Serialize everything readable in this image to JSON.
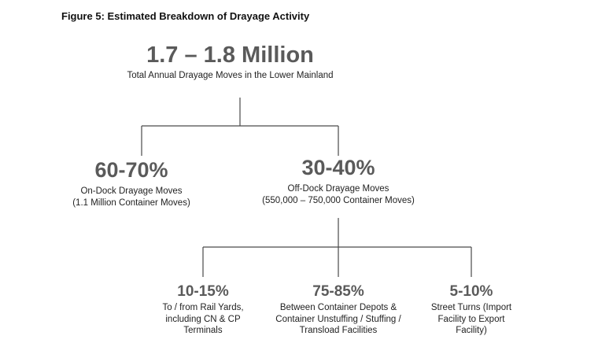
{
  "figure_title": "Figure 5: Estimated Breakdown of Drayage Activity",
  "root": {
    "value": "1.7 – 1.8 Million",
    "label": "Total Annual Drayage Moves in the Lower Mainland"
  },
  "level2": [
    {
      "value": "60-70%",
      "lines": [
        "On-Dock Drayage Moves",
        "(1.1 Million Container Moves)"
      ]
    },
    {
      "value": "30-40%",
      "lines": [
        "Off-Dock Drayage Moves",
        "(550,000 – 750,000 Container Moves)"
      ]
    }
  ],
  "level3": [
    {
      "value": "10-15%",
      "lines": [
        "To / from Rail Yards,",
        "including CN & CP",
        "Terminals"
      ]
    },
    {
      "value": "75-85%",
      "lines": [
        "Between Container Depots &",
        "Container Unstuffing / Stuffing /",
        "Transload Facilities"
      ]
    },
    {
      "value": "5-10%",
      "lines": [
        "Street Turns (Import",
        "Facility to Export",
        "Facility)"
      ]
    }
  ]
}
